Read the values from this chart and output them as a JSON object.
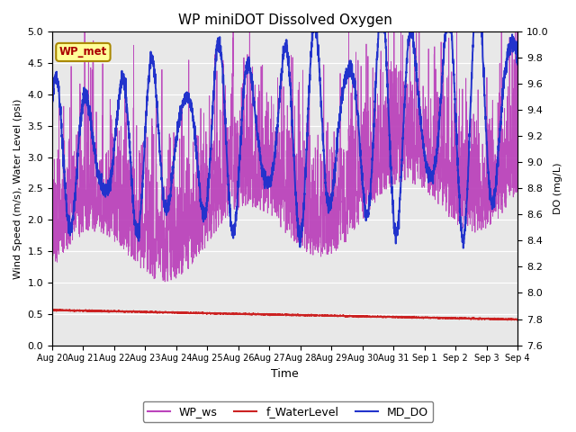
{
  "title": "WP miniDOT Dissolved Oxygen",
  "xlabel": "Time",
  "ylabel_left": "Wind Speed (m/s), Water Level (psi)",
  "ylabel_right": "DO (mg/L)",
  "ylim_left": [
    0.0,
    5.0
  ],
  "ylim_right": [
    7.6,
    10.0
  ],
  "wp_ws_color": "#BB44BB",
  "f_waterlevel_color": "#CC2222",
  "md_do_color": "#2233CC",
  "annotation_text": "WP_met",
  "annotation_color": "#AA0000",
  "annotation_bg": "#FFFF99",
  "annotation_border": "#AA8800",
  "bg_color": "#E8E8E8",
  "legend_labels": [
    "WP_ws",
    "f_WaterLevel",
    "MD_DO"
  ],
  "xtick_labels": [
    "Aug 20",
    "Aug 21",
    "Aug 22",
    "Aug 23",
    "Aug 24",
    "Aug 25",
    "Aug 26",
    "Aug 27",
    "Aug 28",
    "Aug 29",
    "Aug 30",
    "Aug 31",
    "Sep 1",
    "Sep 2",
    "Sep 3",
    "Sep 4"
  ],
  "seed": 42
}
